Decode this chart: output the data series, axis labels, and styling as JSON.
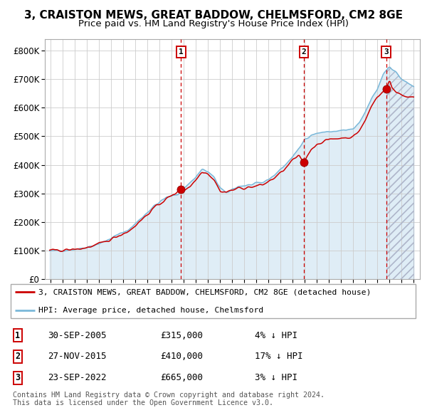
{
  "title": "3, CRAISTON MEWS, GREAT BADDOW, CHELMSFORD, CM2 8GE",
  "subtitle": "Price paid vs. HM Land Registry's House Price Index (HPI)",
  "footer": "Contains HM Land Registry data © Crown copyright and database right 2024.\nThis data is licensed under the Open Government Licence v3.0.",
  "legend_line1": "3, CRAISTON MEWS, GREAT BADDOW, CHELMSFORD, CM2 8GE (detached house)",
  "legend_line2": "HPI: Average price, detached house, Chelmsford",
  "transactions": [
    {
      "label": "1",
      "date": "30-SEP-2005",
      "price": 315000,
      "pct": "4% ↓ HPI",
      "year": 2005.75
    },
    {
      "label": "2",
      "date": "27-NOV-2015",
      "price": 410000,
      "pct": "17% ↓ HPI",
      "year": 2015.92
    },
    {
      "label": "3",
      "date": "23-SEP-2022",
      "price": 665000,
      "pct": "3% ↓ HPI",
      "year": 2022.73
    }
  ],
  "ylim": [
    0,
    840000
  ],
  "yticks": [
    0,
    100000,
    200000,
    300000,
    400000,
    500000,
    600000,
    700000,
    800000
  ],
  "ytick_labels": [
    "£0",
    "£100K",
    "£200K",
    "£300K",
    "£400K",
    "£500K",
    "£600K",
    "£700K",
    "£800K"
  ],
  "xmin": 1994.5,
  "xmax": 2025.5,
  "hpi_color": "#7ab8d9",
  "price_color": "#cc0000",
  "dashed_color": "#cc0000",
  "bg_fill_color": "#daeaf5",
  "grid_color": "#cccccc",
  "title_fontsize": 11,
  "subtitle_fontsize": 9.5,
  "axis_fontsize": 8
}
